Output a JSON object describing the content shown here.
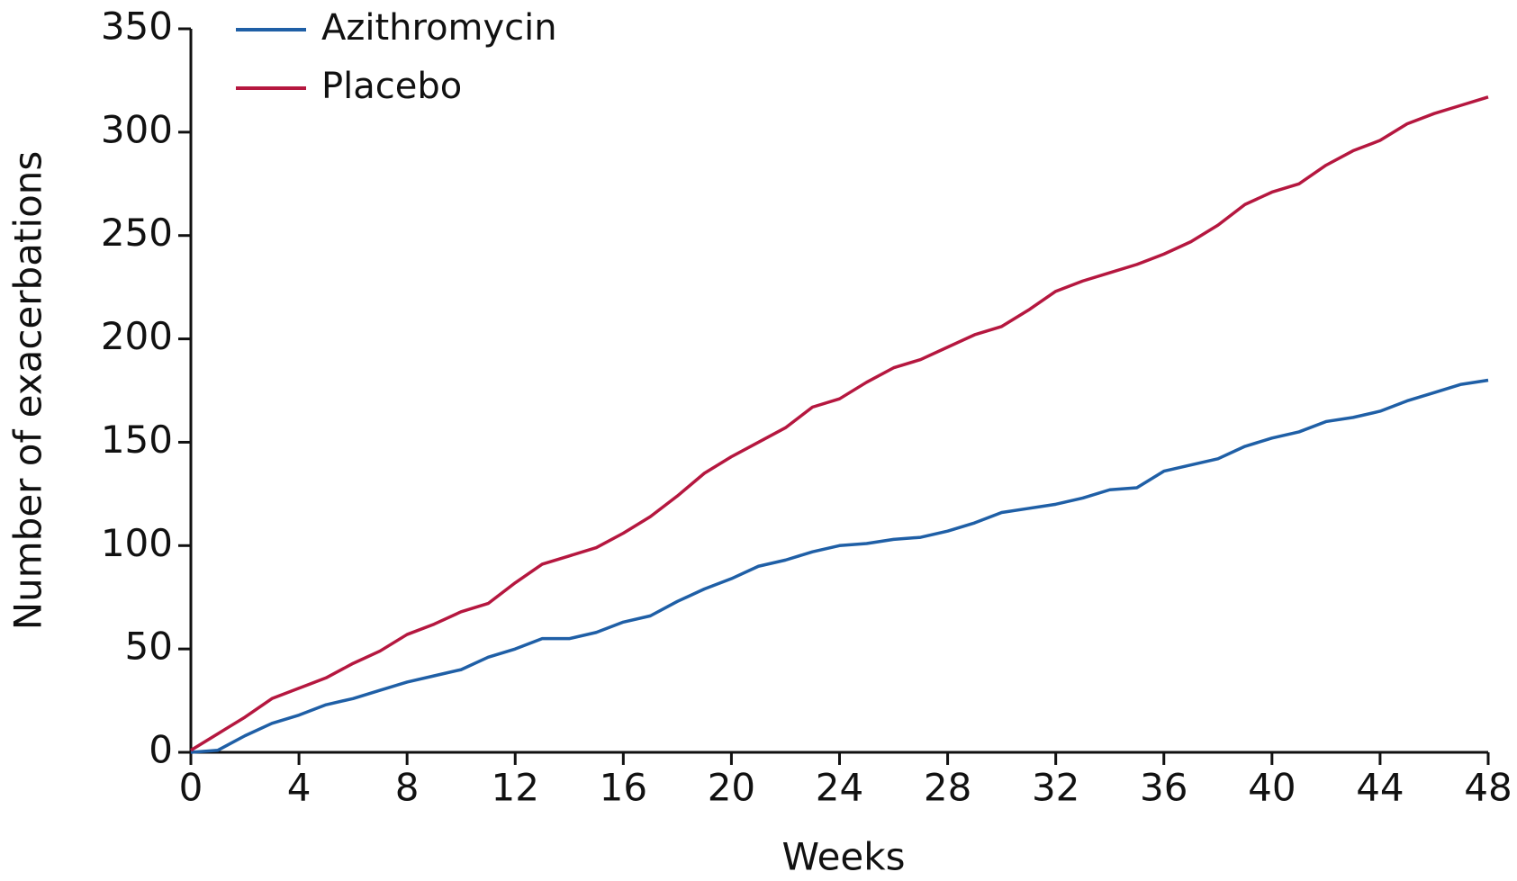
{
  "chart_data": {
    "type": "line",
    "x_label": "Weeks",
    "y_label": "Number of exacerbations",
    "x": [
      0,
      1,
      2,
      3,
      4,
      5,
      6,
      7,
      8,
      9,
      10,
      11,
      12,
      13,
      14,
      15,
      16,
      17,
      18,
      19,
      20,
      21,
      22,
      23,
      24,
      25,
      26,
      27,
      28,
      29,
      30,
      31,
      32,
      33,
      34,
      35,
      36,
      37,
      38,
      39,
      40,
      41,
      42,
      43,
      44,
      45,
      46,
      47,
      48
    ],
    "series": [
      {
        "name": "Azithromycin",
        "color": "#1f5fa6",
        "values": [
          0,
          1,
          8,
          14,
          18,
          23,
          26,
          30,
          34,
          37,
          40,
          46,
          50,
          55,
          55,
          58,
          63,
          66,
          73,
          79,
          84,
          90,
          93,
          97,
          100,
          101,
          103,
          104,
          107,
          111,
          116,
          118,
          120,
          123,
          127,
          128,
          136,
          139,
          142,
          148,
          152,
          155,
          160,
          162,
          165,
          170,
          174,
          178,
          180
        ]
      },
      {
        "name": "Placebo",
        "color": "#b5173f",
        "values": [
          1,
          9,
          17,
          26,
          31,
          36,
          43,
          49,
          57,
          62,
          68,
          72,
          82,
          91,
          95,
          99,
          106,
          114,
          124,
          135,
          143,
          150,
          157,
          167,
          171,
          179,
          186,
          190,
          196,
          202,
          206,
          214,
          223,
          228,
          232,
          236,
          241,
          247,
          255,
          265,
          271,
          275,
          284,
          291,
          296,
          304,
          309,
          313,
          317
        ]
      }
    ],
    "xlim": [
      0,
      48
    ],
    "xticks": [
      0,
      4,
      8,
      12,
      16,
      20,
      24,
      28,
      32,
      36,
      40,
      44,
      48
    ],
    "ylim": [
      0,
      350
    ],
    "yticks": [
      0,
      50,
      100,
      150,
      200,
      250,
      300,
      350
    ],
    "grid": false,
    "legend": "top-left"
  }
}
